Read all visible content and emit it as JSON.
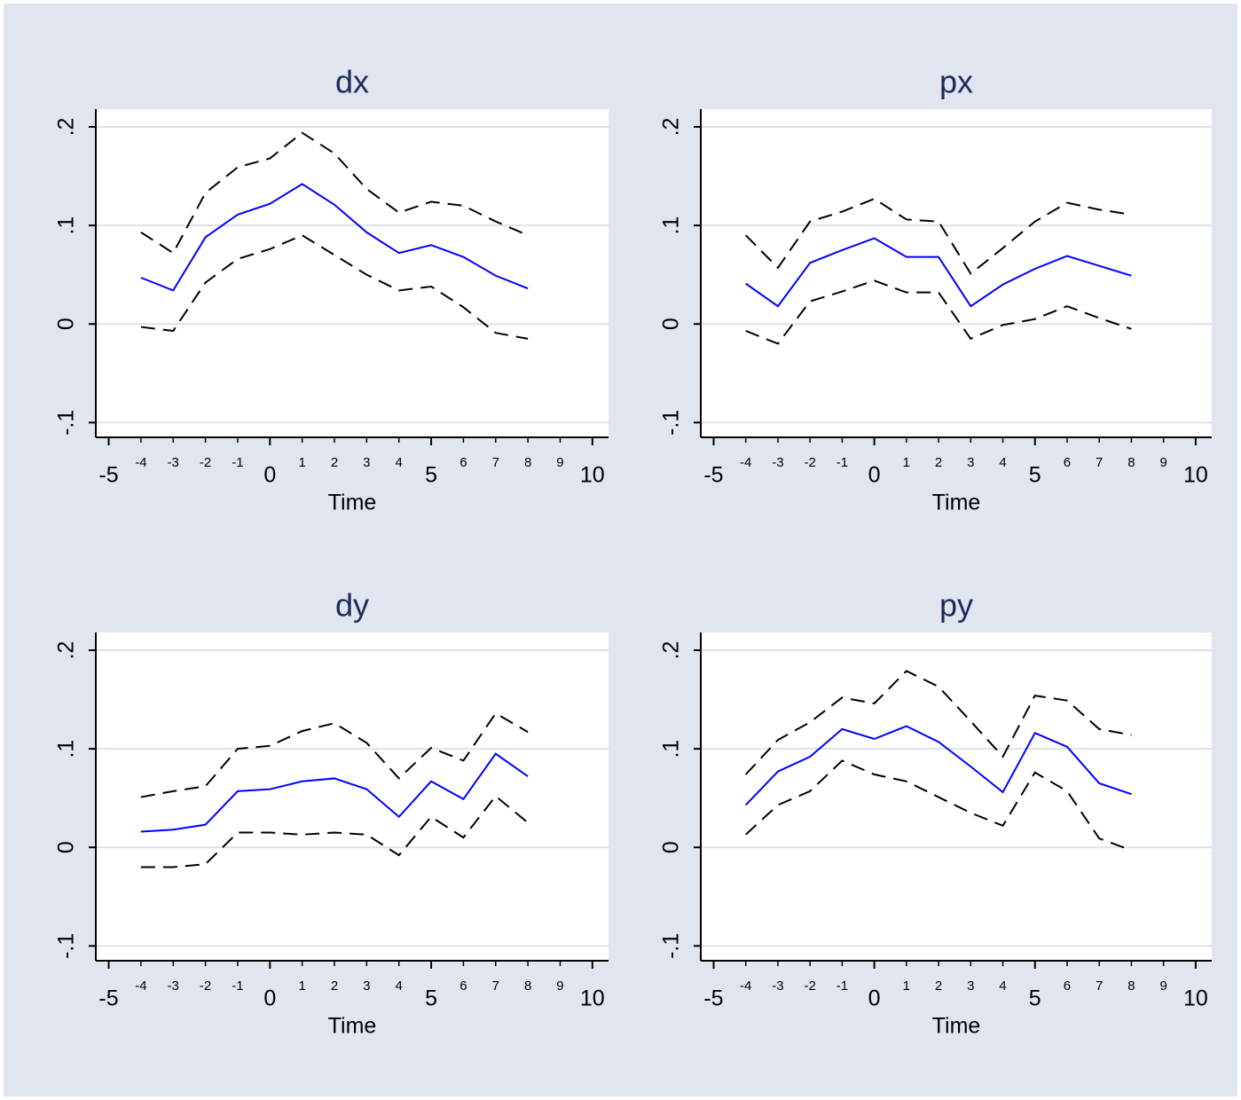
{
  "chart_data": [
    {
      "type": "line",
      "title": "dx",
      "x_label": "Time",
      "x": [
        -4,
        -3,
        -2,
        -1,
        0,
        1,
        2,
        3,
        4,
        5,
        6,
        7,
        8
      ],
      "series": [
        {
          "color": "#000000",
          "line_style": "dashed",
          "values": [
            0.093,
            0.072,
            0.133,
            0.159,
            0.168,
            0.194,
            0.173,
            0.137,
            0.113,
            0.124,
            0.12,
            0.104,
            0.09
          ]
        },
        {
          "color": "#0000ff",
          "line_style": "solid",
          "values": [
            0.047,
            0.034,
            0.088,
            0.111,
            0.122,
            0.142,
            0.121,
            0.093,
            0.072,
            0.08,
            0.068,
            0.049,
            0.036
          ]
        },
        {
          "color": "#000000",
          "line_style": "dashed",
          "values": [
            -0.003,
            -0.007,
            0.042,
            0.066,
            0.076,
            0.09,
            0.07,
            0.05,
            0.034,
            0.038,
            0.017,
            -0.009,
            -0.015
          ]
        }
      ],
      "xlim": [
        -5.4,
        10.5
      ],
      "xticks": [
        -5,
        0,
        5,
        10
      ],
      "xticks_minor": [
        -4,
        -3,
        -2,
        -1,
        1,
        2,
        3,
        4,
        6,
        7,
        8,
        9
      ],
      "ylim": [
        -0.115,
        0.218
      ],
      "yticks": [
        {
          "value": -0.1,
          "label": "-.1"
        },
        0,
        {
          "value": 0.1,
          "label": ".1"
        },
        {
          "value": 0.2,
          "label": ".2"
        }
      ],
      "grid": true
    },
    {
      "type": "line",
      "title": "px",
      "x_label": "Time",
      "x": [
        -4,
        -3,
        -2,
        -1,
        0,
        1,
        2,
        3,
        4,
        5,
        6,
        7,
        8
      ],
      "series": [
        {
          "color": "#000000",
          "line_style": "dashed",
          "values": [
            0.09,
            0.057,
            0.104,
            0.114,
            0.127,
            0.106,
            0.104,
            0.051,
            0.077,
            0.104,
            0.123,
            0.116,
            0.111
          ]
        },
        {
          "color": "#0000ff",
          "line_style": "solid",
          "values": [
            0.041,
            0.018,
            0.062,
            0.075,
            0.087,
            0.068,
            0.068,
            0.018,
            0.04,
            0.056,
            0.069,
            0.059,
            0.049
          ]
        },
        {
          "color": "#000000",
          "line_style": "dashed",
          "values": [
            -0.007,
            -0.02,
            0.023,
            0.033,
            0.044,
            0.032,
            0.032,
            -0.015,
            -0.001,
            0.005,
            0.018,
            0.006,
            -0.005
          ]
        }
      ],
      "xlim": [
        -5.4,
        10.5
      ],
      "xticks": [
        -5,
        0,
        5,
        10
      ],
      "xticks_minor": [
        -4,
        -3,
        -2,
        -1,
        1,
        2,
        3,
        4,
        6,
        7,
        8,
        9
      ],
      "ylim": [
        -0.115,
        0.218
      ],
      "yticks": [
        {
          "value": -0.1,
          "label": "-.1"
        },
        0,
        {
          "value": 0.1,
          "label": ".1"
        },
        {
          "value": 0.2,
          "label": ".2"
        }
      ],
      "grid": true
    },
    {
      "type": "line",
      "title": "dy",
      "x_label": "Time",
      "x": [
        -4,
        -3,
        -2,
        -1,
        0,
        1,
        2,
        3,
        4,
        5,
        6,
        7,
        8
      ],
      "series": [
        {
          "color": "#000000",
          "line_style": "dashed",
          "values": [
            0.051,
            0.057,
            0.062,
            0.1,
            0.103,
            0.118,
            0.126,
            0.106,
            0.07,
            0.101,
            0.088,
            0.136,
            0.117
          ]
        },
        {
          "color": "#0000ff",
          "line_style": "solid",
          "values": [
            0.016,
            0.018,
            0.023,
            0.057,
            0.059,
            0.067,
            0.07,
            0.059,
            0.031,
            0.067,
            0.049,
            0.095,
            0.072
          ]
        },
        {
          "color": "#000000",
          "line_style": "dashed",
          "values": [
            -0.02,
            -0.02,
            -0.017,
            0.015,
            0.015,
            0.013,
            0.015,
            0.013,
            -0.008,
            0.031,
            0.01,
            0.052,
            0.025
          ]
        }
      ],
      "xlim": [
        -5.4,
        10.5
      ],
      "xticks": [
        -5,
        0,
        5,
        10
      ],
      "xticks_minor": [
        -4,
        -3,
        -2,
        -1,
        1,
        2,
        3,
        4,
        6,
        7,
        8,
        9
      ],
      "ylim": [
        -0.115,
        0.218
      ],
      "yticks": [
        {
          "value": -0.1,
          "label": "-.1"
        },
        0,
        {
          "value": 0.1,
          "label": ".1"
        },
        {
          "value": 0.2,
          "label": ".2"
        }
      ],
      "grid": true
    },
    {
      "type": "line",
      "title": "py",
      "x_label": "Time",
      "x": [
        -4,
        -3,
        -2,
        -1,
        0,
        1,
        2,
        3,
        4,
        5,
        6,
        7,
        8
      ],
      "series": [
        {
          "color": "#000000",
          "line_style": "dashed",
          "values": [
            0.074,
            0.109,
            0.127,
            0.152,
            0.146,
            0.179,
            0.163,
            0.128,
            0.092,
            0.154,
            0.149,
            0.12,
            0.114
          ]
        },
        {
          "color": "#0000ff",
          "line_style": "solid",
          "values": [
            0.043,
            0.077,
            0.092,
            0.12,
            0.11,
            0.123,
            0.107,
            0.082,
            0.056,
            0.116,
            0.102,
            0.065,
            0.054
          ]
        },
        {
          "color": "#000000",
          "line_style": "dashed",
          "values": [
            0.013,
            0.043,
            0.057,
            0.088,
            0.074,
            0.067,
            0.051,
            0.035,
            0.022,
            0.076,
            0.057,
            0.009,
            -0.003
          ]
        }
      ],
      "xlim": [
        -5.4,
        10.5
      ],
      "xticks": [
        -5,
        0,
        5,
        10
      ],
      "xticks_minor": [
        -4,
        -3,
        -2,
        -1,
        1,
        2,
        3,
        4,
        6,
        7,
        8,
        9
      ],
      "ylim": [
        -0.115,
        0.218
      ],
      "yticks": [
        {
          "value": -0.1,
          "label": "-.1"
        },
        0,
        {
          "value": 0.1,
          "label": ".1"
        },
        {
          "value": 0.2,
          "label": ".2"
        }
      ],
      "grid": true
    }
  ]
}
